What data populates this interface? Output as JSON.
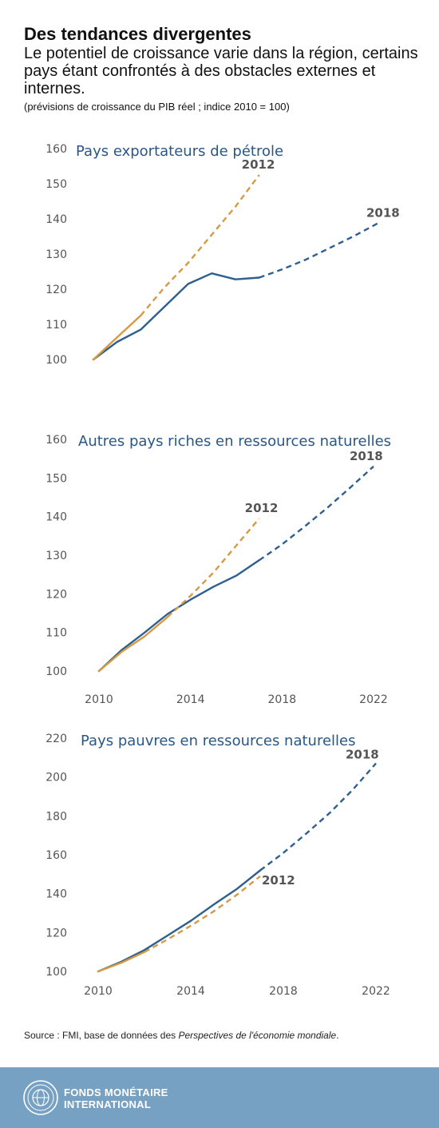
{
  "header": {
    "title": "Des tendances divergentes",
    "subtitle": "Le potentiel de croissance varie dans la région, certains pays étant confrontés à des obstacles externes et internes.",
    "note": "(prévisions de croissance du PIB réel ; indice 2010 = 100)"
  },
  "colors": {
    "series_2018": "#2e5f8e",
    "series_2012": "#d59a42",
    "title": "#2a5783"
  },
  "chart_data": [
    {
      "type": "line",
      "title": "Pays exportateurs de pétrole",
      "xlim": [
        2010,
        2022
      ],
      "ylim": [
        100,
        160
      ],
      "xticks": [
        2010,
        2014,
        2018,
        2022
      ],
      "yticks": [
        100,
        110,
        120,
        130,
        140,
        150,
        160
      ],
      "series": [
        {
          "name": "2018",
          "color": "#2e5f8e",
          "dashed_from": 2017,
          "points": [
            [
              2010,
              100
            ],
            [
              2011,
              105
            ],
            [
              2012,
              108.5
            ],
            [
              2013,
              115
            ],
            [
              2014,
              121.5
            ],
            [
              2015,
              124.5
            ],
            [
              2016,
              122.8
            ],
            [
              2017,
              123.3
            ],
            [
              2018,
              125.7
            ],
            [
              2019,
              128.5
            ],
            [
              2020,
              131.8
            ],
            [
              2021,
              135.1
            ],
            [
              2022,
              138.7
            ]
          ]
        },
        {
          "name": "2012",
          "color": "#d59a42",
          "dashed_from": 2012,
          "points": [
            [
              2010,
              100
            ],
            [
              2011,
              106.3
            ],
            [
              2012,
              112.5
            ],
            [
              2013,
              120.5
            ],
            [
              2014,
              127.5
            ],
            [
              2015,
              135.5
            ],
            [
              2016,
              143.5
            ],
            [
              2017,
              152.5
            ]
          ]
        }
      ]
    },
    {
      "type": "line",
      "title": "Autres pays riches en ressources naturelles",
      "xlim": [
        2010,
        2022
      ],
      "ylim": [
        100,
        160
      ],
      "xticks": [
        2010,
        2014,
        2018,
        2022
      ],
      "yticks": [
        100,
        110,
        120,
        130,
        140,
        150,
        160
      ],
      "series": [
        {
          "name": "2018",
          "color": "#2e5f8e",
          "dashed_from": 2017,
          "points": [
            [
              2010,
              100
            ],
            [
              2011,
              105.5
            ],
            [
              2012,
              110
            ],
            [
              2013,
              114.8
            ],
            [
              2014,
              118.5
            ],
            [
              2015,
              121.8
            ],
            [
              2016,
              124.7
            ],
            [
              2017,
              128.7
            ],
            [
              2018,
              132.8
            ],
            [
              2019,
              137.5
            ],
            [
              2020,
              142.4
            ],
            [
              2021,
              147.6
            ],
            [
              2022,
              153
            ]
          ]
        },
        {
          "name": "2012",
          "color": "#d59a42",
          "dashed_from": 2013,
          "points": [
            [
              2010,
              100
            ],
            [
              2011,
              105
            ],
            [
              2012,
              109
            ],
            [
              2013,
              114
            ],
            [
              2014,
              119.5
            ],
            [
              2015,
              125.5
            ],
            [
              2016,
              132.5
            ],
            [
              2017,
              139.5
            ]
          ]
        }
      ]
    },
    {
      "type": "line",
      "title": "Pays pauvres en ressources naturelles",
      "xlim": [
        2010,
        2022
      ],
      "ylim": [
        100,
        220
      ],
      "xticks": [
        2010,
        2014,
        2018,
        2022
      ],
      "yticks": [
        100,
        120,
        140,
        160,
        180,
        200,
        220
      ],
      "series": [
        {
          "name": "2018",
          "color": "#2e5f8e",
          "dashed_from": 2017,
          "points": [
            [
              2010,
              100
            ],
            [
              2011,
              105
            ],
            [
              2012,
              111
            ],
            [
              2013,
              118.5
            ],
            [
              2014,
              126
            ],
            [
              2015,
              134.5
            ],
            [
              2016,
              142.5
            ],
            [
              2017,
              152
            ],
            [
              2018,
              161
            ],
            [
              2019,
              171
            ],
            [
              2020,
              181.5
            ],
            [
              2021,
              193.5
            ],
            [
              2022,
              207
            ]
          ]
        },
        {
          "name": "2012",
          "color": "#d59a42",
          "dashed_from": 2012,
          "points": [
            [
              2010,
              100
            ],
            [
              2011,
              104.5
            ],
            [
              2012,
              110
            ],
            [
              2013,
              116.5
            ],
            [
              2014,
              123.5
            ],
            [
              2015,
              131
            ],
            [
              2016,
              139.5
            ],
            [
              2017,
              149
            ]
          ]
        }
      ]
    }
  ],
  "source": {
    "prefix": "Source : FMI, base de données des ",
    "italic": "Perspectives de l'économie mondiale",
    "suffix": "."
  },
  "footer": {
    "org_line1": "FONDS MONÉTAIRE",
    "org_line2": "INTERNATIONAL"
  }
}
